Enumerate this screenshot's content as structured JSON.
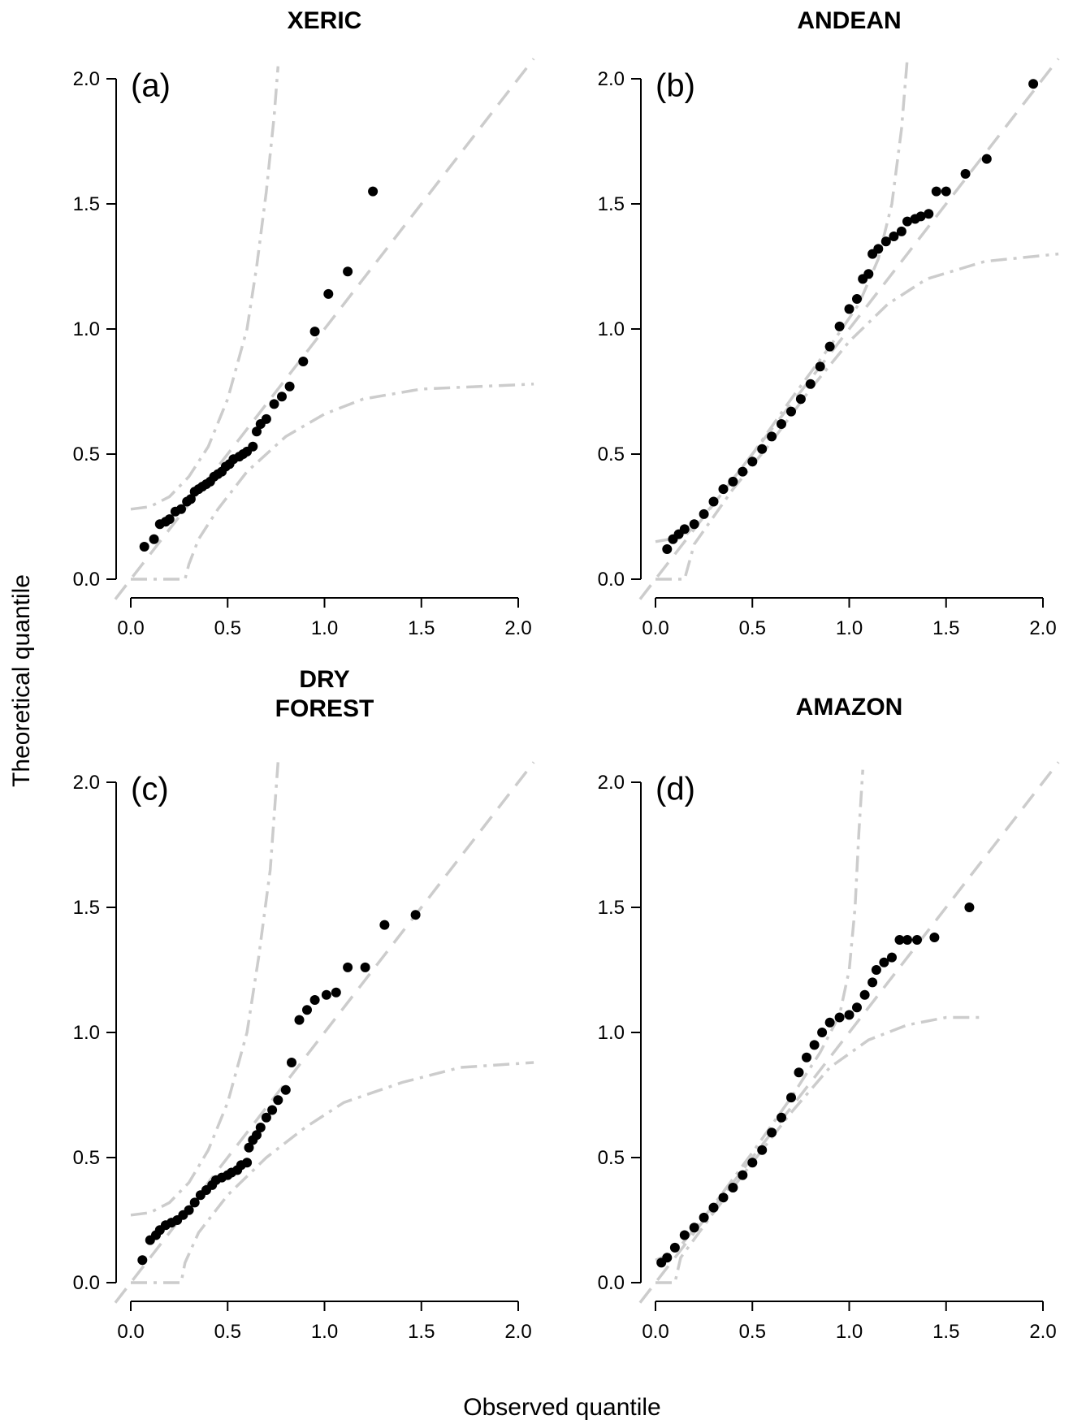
{
  "figure": {
    "xlabel": "Observed quantile",
    "ylabel": "Theoretical quantile"
  },
  "chart_data": [
    {
      "type": "scatter",
      "panel_label": "(a)",
      "title": "XERIC",
      "xlim": [
        0,
        2.0
      ],
      "ylim": [
        0,
        2.0
      ],
      "x_ticks": [
        "0.0",
        "0.5",
        "1.0",
        "1.5",
        "2.0"
      ],
      "y_ticks": [
        "0.0",
        "0.5",
        "1.0",
        "1.5",
        "2.0"
      ],
      "reference_line": "y = x",
      "envelope_upper": [
        [
          0,
          0.28
        ],
        [
          0.1,
          0.29
        ],
        [
          0.2,
          0.33
        ],
        [
          0.3,
          0.41
        ],
        [
          0.4,
          0.53
        ],
        [
          0.5,
          0.72
        ],
        [
          0.6,
          1.0
        ],
        [
          0.65,
          1.25
        ],
        [
          0.7,
          1.55
        ],
        [
          0.74,
          1.85
        ],
        [
          0.76,
          2.05
        ]
      ],
      "envelope_lower": [
        [
          0,
          0.0
        ],
        [
          0.28,
          0.0
        ],
        [
          0.3,
          0.06
        ],
        [
          0.35,
          0.16
        ],
        [
          0.45,
          0.28
        ],
        [
          0.6,
          0.43
        ],
        [
          0.8,
          0.57
        ],
        [
          1.0,
          0.66
        ],
        [
          1.2,
          0.72
        ],
        [
          1.5,
          0.76
        ],
        [
          2.08,
          0.78
        ]
      ],
      "points": [
        [
          0.07,
          0.13
        ],
        [
          0.12,
          0.16
        ],
        [
          0.15,
          0.22
        ],
        [
          0.18,
          0.23
        ],
        [
          0.2,
          0.24
        ],
        [
          0.23,
          0.27
        ],
        [
          0.26,
          0.28
        ],
        [
          0.29,
          0.31
        ],
        [
          0.31,
          0.32
        ],
        [
          0.33,
          0.35
        ],
        [
          0.35,
          0.36
        ],
        [
          0.37,
          0.37
        ],
        [
          0.39,
          0.38
        ],
        [
          0.41,
          0.39
        ],
        [
          0.43,
          0.41
        ],
        [
          0.45,
          0.42
        ],
        [
          0.47,
          0.43
        ],
        [
          0.49,
          0.45
        ],
        [
          0.51,
          0.46
        ],
        [
          0.53,
          0.48
        ],
        [
          0.56,
          0.49
        ],
        [
          0.58,
          0.5
        ],
        [
          0.6,
          0.51
        ],
        [
          0.63,
          0.53
        ],
        [
          0.65,
          0.59
        ],
        [
          0.67,
          0.62
        ],
        [
          0.7,
          0.64
        ],
        [
          0.74,
          0.7
        ],
        [
          0.78,
          0.73
        ],
        [
          0.82,
          0.77
        ],
        [
          0.89,
          0.87
        ],
        [
          0.95,
          0.99
        ],
        [
          1.02,
          1.14
        ],
        [
          1.12,
          1.23
        ],
        [
          1.25,
          1.55
        ]
      ]
    },
    {
      "type": "scatter",
      "panel_label": "(b)",
      "title": "ANDEAN",
      "xlim": [
        0,
        2.0
      ],
      "ylim": [
        0,
        2.0
      ],
      "x_ticks": [
        "0.0",
        "0.5",
        "1.0",
        "1.5",
        "2.0"
      ],
      "y_ticks": [
        "0.0",
        "0.5",
        "1.0",
        "1.5",
        "2.0"
      ],
      "reference_line": "y = x",
      "envelope_upper": [
        [
          0,
          0.15
        ],
        [
          0.15,
          0.17
        ],
        [
          0.3,
          0.3
        ],
        [
          0.5,
          0.5
        ],
        [
          0.7,
          0.72
        ],
        [
          0.9,
          0.93
        ],
        [
          1.05,
          1.1
        ],
        [
          1.15,
          1.28
        ],
        [
          1.22,
          1.5
        ],
        [
          1.27,
          1.8
        ],
        [
          1.3,
          2.08
        ]
      ],
      "envelope_lower": [
        [
          0,
          0.0
        ],
        [
          0.15,
          0.0
        ],
        [
          0.2,
          0.14
        ],
        [
          0.4,
          0.36
        ],
        [
          0.6,
          0.55
        ],
        [
          0.8,
          0.76
        ],
        [
          1.0,
          0.95
        ],
        [
          1.2,
          1.1
        ],
        [
          1.4,
          1.2
        ],
        [
          1.7,
          1.27
        ],
        [
          2.08,
          1.3
        ]
      ],
      "points": [
        [
          0.06,
          0.12
        ],
        [
          0.09,
          0.16
        ],
        [
          0.12,
          0.18
        ],
        [
          0.15,
          0.2
        ],
        [
          0.2,
          0.22
        ],
        [
          0.25,
          0.26
        ],
        [
          0.3,
          0.31
        ],
        [
          0.35,
          0.36
        ],
        [
          0.4,
          0.39
        ],
        [
          0.45,
          0.43
        ],
        [
          0.5,
          0.47
        ],
        [
          0.55,
          0.52
        ],
        [
          0.6,
          0.57
        ],
        [
          0.65,
          0.62
        ],
        [
          0.7,
          0.67
        ],
        [
          0.75,
          0.72
        ],
        [
          0.8,
          0.78
        ],
        [
          0.85,
          0.85
        ],
        [
          0.9,
          0.93
        ],
        [
          0.95,
          1.01
        ],
        [
          1.0,
          1.08
        ],
        [
          1.04,
          1.12
        ],
        [
          1.07,
          1.2
        ],
        [
          1.1,
          1.22
        ],
        [
          1.12,
          1.3
        ],
        [
          1.15,
          1.32
        ],
        [
          1.19,
          1.35
        ],
        [
          1.23,
          1.37
        ],
        [
          1.27,
          1.39
        ],
        [
          1.3,
          1.43
        ],
        [
          1.34,
          1.44
        ],
        [
          1.37,
          1.45
        ],
        [
          1.41,
          1.46
        ],
        [
          1.45,
          1.55
        ],
        [
          1.5,
          1.55
        ],
        [
          1.6,
          1.62
        ],
        [
          1.71,
          1.68
        ],
        [
          1.95,
          1.98
        ]
      ]
    },
    {
      "type": "scatter",
      "panel_label": "(c)",
      "title": "DRY\nFOREST",
      "xlim": [
        0,
        2.0
      ],
      "ylim": [
        0,
        2.0
      ],
      "x_ticks": [
        "0.0",
        "0.5",
        "1.0",
        "1.5",
        "2.0"
      ],
      "y_ticks": [
        "0.0",
        "0.5",
        "1.0",
        "1.5",
        "2.0"
      ],
      "reference_line": "y = x",
      "envelope_upper": [
        [
          0,
          0.27
        ],
        [
          0.1,
          0.28
        ],
        [
          0.2,
          0.32
        ],
        [
          0.3,
          0.4
        ],
        [
          0.4,
          0.53
        ],
        [
          0.5,
          0.72
        ],
        [
          0.6,
          1.0
        ],
        [
          0.66,
          1.3
        ],
        [
          0.72,
          1.65
        ],
        [
          0.76,
          2.08
        ]
      ],
      "envelope_lower": [
        [
          0,
          0.0
        ],
        [
          0.26,
          0.0
        ],
        [
          0.28,
          0.08
        ],
        [
          0.35,
          0.2
        ],
        [
          0.5,
          0.35
        ],
        [
          0.7,
          0.5
        ],
        [
          0.9,
          0.62
        ],
        [
          1.1,
          0.72
        ],
        [
          1.4,
          0.8
        ],
        [
          1.7,
          0.86
        ],
        [
          2.08,
          0.88
        ]
      ],
      "points": [
        [
          0.06,
          0.09
        ],
        [
          0.1,
          0.17
        ],
        [
          0.13,
          0.19
        ],
        [
          0.15,
          0.21
        ],
        [
          0.18,
          0.23
        ],
        [
          0.21,
          0.24
        ],
        [
          0.24,
          0.25
        ],
        [
          0.27,
          0.27
        ],
        [
          0.3,
          0.29
        ],
        [
          0.33,
          0.32
        ],
        [
          0.36,
          0.35
        ],
        [
          0.39,
          0.37
        ],
        [
          0.42,
          0.39
        ],
        [
          0.44,
          0.41
        ],
        [
          0.47,
          0.42
        ],
        [
          0.5,
          0.43
        ],
        [
          0.52,
          0.44
        ],
        [
          0.55,
          0.45
        ],
        [
          0.57,
          0.47
        ],
        [
          0.6,
          0.48
        ],
        [
          0.61,
          0.54
        ],
        [
          0.63,
          0.57
        ],
        [
          0.65,
          0.59
        ],
        [
          0.67,
          0.62
        ],
        [
          0.7,
          0.66
        ],
        [
          0.73,
          0.69
        ],
        [
          0.76,
          0.73
        ],
        [
          0.8,
          0.77
        ],
        [
          0.83,
          0.88
        ],
        [
          0.87,
          1.05
        ],
        [
          0.91,
          1.09
        ],
        [
          0.95,
          1.13
        ],
        [
          1.01,
          1.15
        ],
        [
          1.06,
          1.16
        ],
        [
          1.12,
          1.26
        ],
        [
          1.21,
          1.26
        ],
        [
          1.31,
          1.43
        ],
        [
          1.47,
          1.47
        ]
      ]
    },
    {
      "type": "scatter",
      "panel_label": "(d)",
      "title": "AMAZON",
      "xlim": [
        0,
        2.0
      ],
      "ylim": [
        0,
        2.0
      ],
      "x_ticks": [
        "0.0",
        "0.5",
        "1.0",
        "1.5",
        "2.0"
      ],
      "y_ticks": [
        "0.0",
        "0.5",
        "1.0",
        "1.5",
        "2.0"
      ],
      "reference_line": "y = x",
      "envelope_upper": [
        [
          0,
          0.09
        ],
        [
          0.1,
          0.12
        ],
        [
          0.3,
          0.31
        ],
        [
          0.5,
          0.52
        ],
        [
          0.7,
          0.74
        ],
        [
          0.85,
          0.92
        ],
        [
          0.95,
          1.07
        ],
        [
          1.0,
          1.25
        ],
        [
          1.03,
          1.5
        ],
        [
          1.05,
          1.8
        ],
        [
          1.07,
          2.05
        ]
      ],
      "envelope_lower": [
        [
          0,
          0.0
        ],
        [
          0.1,
          0.0
        ],
        [
          0.13,
          0.1
        ],
        [
          0.3,
          0.28
        ],
        [
          0.5,
          0.48
        ],
        [
          0.7,
          0.68
        ],
        [
          0.9,
          0.86
        ],
        [
          1.1,
          0.97
        ],
        [
          1.3,
          1.03
        ],
        [
          1.5,
          1.06
        ],
        [
          1.7,
          1.06
        ]
      ],
      "points": [
        [
          0.03,
          0.08
        ],
        [
          0.06,
          0.1
        ],
        [
          0.1,
          0.14
        ],
        [
          0.15,
          0.19
        ],
        [
          0.2,
          0.22
        ],
        [
          0.25,
          0.26
        ],
        [
          0.3,
          0.3
        ],
        [
          0.35,
          0.34
        ],
        [
          0.4,
          0.38
        ],
        [
          0.45,
          0.43
        ],
        [
          0.5,
          0.48
        ],
        [
          0.55,
          0.53
        ],
        [
          0.6,
          0.6
        ],
        [
          0.65,
          0.66
        ],
        [
          0.7,
          0.74
        ],
        [
          0.74,
          0.84
        ],
        [
          0.78,
          0.9
        ],
        [
          0.82,
          0.95
        ],
        [
          0.86,
          1.0
        ],
        [
          0.9,
          1.04
        ],
        [
          0.95,
          1.06
        ],
        [
          1.0,
          1.07
        ],
        [
          1.04,
          1.1
        ],
        [
          1.08,
          1.15
        ],
        [
          1.12,
          1.2
        ],
        [
          1.14,
          1.25
        ],
        [
          1.18,
          1.28
        ],
        [
          1.22,
          1.3
        ],
        [
          1.26,
          1.37
        ],
        [
          1.3,
          1.37
        ],
        [
          1.35,
          1.37
        ],
        [
          1.44,
          1.38
        ],
        [
          1.62,
          1.5
        ]
      ]
    }
  ]
}
